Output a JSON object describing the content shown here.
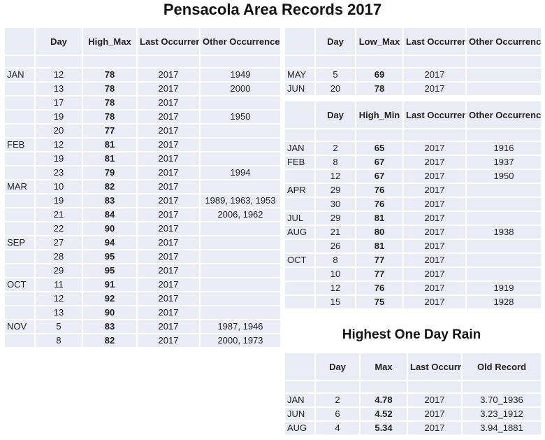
{
  "title": "Pensacola Area Records 2017",
  "high_max": {
    "headers": [
      "",
      "Day",
      "High_Max",
      "Last Occurrence",
      "Other Occurrences"
    ],
    "rows": [
      [
        "JAN",
        "12",
        "78",
        "2017",
        "1949"
      ],
      [
        "",
        "13",
        "78",
        "2017",
        "2000"
      ],
      [
        "",
        "17",
        "78",
        "2017",
        ""
      ],
      [
        "",
        "19",
        "78",
        "2017",
        "1950"
      ],
      [
        "",
        "20",
        "77",
        "2017",
        ""
      ],
      [
        "FEB",
        "12",
        "81",
        "2017",
        ""
      ],
      [
        "",
        "19",
        "81",
        "2017",
        ""
      ],
      [
        "",
        "23",
        "79",
        "2017",
        "1994"
      ],
      [
        "MAR",
        "10",
        "82",
        "2017",
        ""
      ],
      [
        "",
        "19",
        "83",
        "2017",
        "1989, 1963, 1953"
      ],
      [
        "",
        "21",
        "84",
        "2017",
        "2006, 1962"
      ],
      [
        "",
        "22",
        "90",
        "2017",
        ""
      ],
      [
        "SEP",
        "27",
        "94",
        "2017",
        ""
      ],
      [
        "",
        "28",
        "95",
        "2017",
        ""
      ],
      [
        "",
        "29",
        "95",
        "2017",
        ""
      ],
      [
        "OCT",
        "11",
        "91",
        "2017",
        ""
      ],
      [
        "",
        "12",
        "92",
        "2017",
        ""
      ],
      [
        "",
        "13",
        "90",
        "2017",
        ""
      ],
      [
        "NOV",
        "5",
        "83",
        "2017",
        "1987, 1946"
      ],
      [
        "",
        "8",
        "82",
        "2017",
        "2000, 1973"
      ]
    ]
  },
  "low_max": {
    "headers": [
      "",
      "Day",
      "Low_Max",
      "Last Occurrence",
      "Other Occurrences"
    ],
    "rows": [
      [
        "MAY",
        "5",
        "69",
        "2017",
        ""
      ],
      [
        "JUN",
        "20",
        "78",
        "2017",
        ""
      ]
    ]
  },
  "high_min": {
    "headers": [
      "",
      "Day",
      "High_Min",
      "Last Occurrence",
      "Other Occurrences"
    ],
    "rows": [
      [
        "JAN",
        "2",
        "65",
        "2017",
        "1916"
      ],
      [
        "FEB",
        "8",
        "67",
        "2017",
        "1937"
      ],
      [
        "",
        "12",
        "67",
        "2017",
        "1950"
      ],
      [
        "APR",
        "29",
        "76",
        "2017",
        ""
      ],
      [
        "",
        "30",
        "76",
        "2017",
        ""
      ],
      [
        "JUL",
        "29",
        "81",
        "2017",
        ""
      ],
      [
        "AUG",
        "21",
        "80",
        "2017",
        "1938"
      ],
      [
        "",
        "26",
        "81",
        "2017",
        ""
      ],
      [
        "OCT",
        "8",
        "77",
        "2017",
        ""
      ],
      [
        "",
        "10",
        "77",
        "2017",
        ""
      ],
      [
        "",
        "12",
        "76",
        "2017",
        "1919"
      ],
      [
        "",
        "15",
        "75",
        "2017",
        "1928"
      ]
    ]
  },
  "rain": {
    "title": "Highest One Day Rain",
    "headers": [
      "",
      "Day",
      "Max",
      "Last Occurrence",
      "Old Record"
    ],
    "rows": [
      [
        "JAN",
        "2",
        "4.78",
        "2017",
        "3.70_1936"
      ],
      [
        "JUN",
        "6",
        "4.52",
        "2017",
        "3.23_1912"
      ],
      [
        "AUG",
        "4",
        "5.34",
        "2017",
        "3.94_1881"
      ]
    ]
  }
}
